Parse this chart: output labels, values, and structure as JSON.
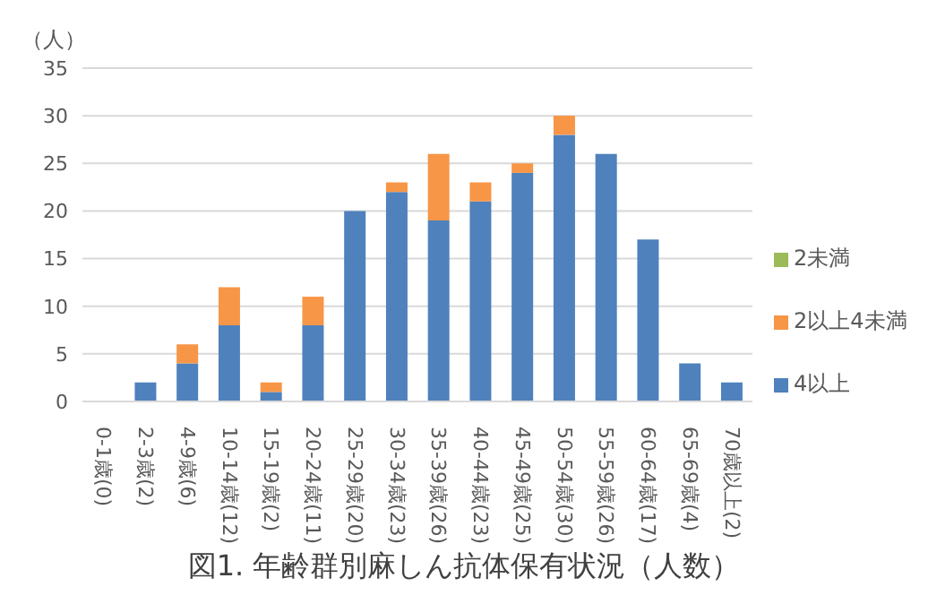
{
  "chart_data": {
    "type": "bar",
    "title": "図1. 年齢群別麻しん抗体保有状況（人数）",
    "ylabel": "（人）",
    "stacked": true,
    "categories": [
      "0-1歳(0)",
      "2-3歳(2)",
      "4-9歳(6)",
      "10-14歳(12)",
      "15-19歳(2)",
      "20-24歳(11)",
      "25-29歳(20)",
      "30-34歳(23)",
      "35-39歳(26)",
      "40-44歳(23)",
      "45-49歳(25)",
      "50-54歳(30)",
      "55-59歳(26)",
      "60-64歳(17)",
      "65-69歳(4)",
      "70歳以上(2)"
    ],
    "series": [
      {
        "name": "4以上",
        "color": "#4f81bd",
        "values": [
          0,
          2,
          4,
          8,
          1,
          8,
          20,
          22,
          19,
          21,
          24,
          28,
          26,
          17,
          4,
          2
        ]
      },
      {
        "name": "2以上4未満",
        "color": "#f79646",
        "values": [
          0,
          0,
          2,
          4,
          1,
          3,
          0,
          1,
          7,
          2,
          1,
          2,
          0,
          0,
          0,
          0
        ]
      },
      {
        "name": "2未満",
        "color": "#9bbb59",
        "values": [
          0,
          0,
          0,
          0,
          0,
          0,
          0,
          0,
          0,
          0,
          0,
          0,
          0,
          0,
          0,
          0
        ]
      }
    ],
    "ylim": [
      0,
      35
    ],
    "yticks": [
      0,
      5,
      10,
      15,
      20,
      25,
      30,
      35
    ],
    "grid": "y",
    "legend": "right"
  }
}
